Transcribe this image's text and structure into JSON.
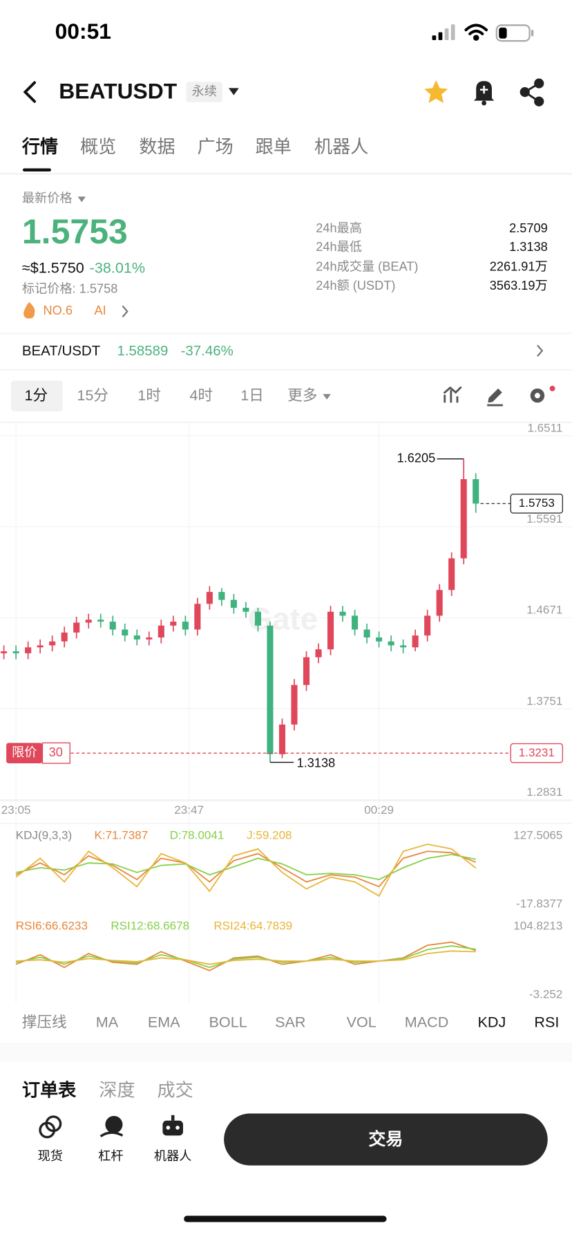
{
  "status_bar": {
    "time": "00:51"
  },
  "header": {
    "symbol": "BEATUSDT",
    "contract_type": "永续"
  },
  "tabs": [
    "行情",
    "概览",
    "数据",
    "广场",
    "跟单",
    "机器人"
  ],
  "price_panel": {
    "label": "最新价格",
    "last_price": "1.5753",
    "usd_price": "≈$1.5750",
    "change": "-38.01%",
    "mark_price": "标记价格: 1.5758",
    "rank": "NO.6",
    "tag": "AI",
    "stats": [
      {
        "label": "24h最高",
        "value": "2.5709"
      },
      {
        "label": "24h最低",
        "value": "1.3138"
      },
      {
        "label": "24h成交量 (BEAT)",
        "value": "2261.91万"
      },
      {
        "label": "24h额 (USDT)",
        "value": "3563.19万"
      }
    ]
  },
  "spot_row": {
    "pair": "BEAT/USDT",
    "price": "1.58589",
    "change": "-37.46%"
  },
  "intervals": [
    "1分",
    "15分",
    "1时",
    "4时",
    "1日",
    "更多"
  ],
  "chart_data": [
    {
      "type": "candlestick",
      "watermark": "Gate",
      "grid": true,
      "x": [
        0,
        1,
        2,
        3,
        4,
        5,
        6,
        7,
        8,
        9,
        10,
        11,
        12,
        13,
        14,
        15,
        16,
        17,
        18,
        19,
        20,
        21,
        22,
        23,
        24,
        25,
        26,
        27,
        28,
        29,
        30,
        31,
        32,
        33,
        34,
        35,
        36,
        37,
        38,
        39
      ],
      "xlim": [
        -0.32,
        46.95
      ],
      "xticks": [
        {
          "value": 1,
          "label": "23:05"
        },
        {
          "value": 15.3,
          "label": "23:47"
        },
        {
          "value": 31,
          "label": "00:29"
        }
      ],
      "ylim": [
        1.2831,
        1.6511
      ],
      "yticks": [
        1.2831,
        1.3751,
        1.4671,
        1.5591,
        1.6511
      ],
      "open": [
        1.424,
        1.426,
        1.424,
        1.43,
        1.432,
        1.436,
        1.445,
        1.455,
        1.458,
        1.456,
        1.448,
        1.442,
        1.438,
        1.44,
        1.452,
        1.456,
        1.448,
        1.474,
        1.486,
        1.478,
        1.47,
        1.466,
        1.452,
        1.322,
        1.352,
        1.392,
        1.42,
        1.428,
        1.466,
        1.462,
        1.448,
        1.44,
        1.436,
        1.432,
        1.43,
        1.442,
        1.462,
        1.488,
        1.52,
        1.6
      ],
      "high": [
        1.432,
        1.432,
        1.436,
        1.438,
        1.442,
        1.451,
        1.461,
        1.464,
        1.464,
        1.462,
        1.454,
        1.448,
        1.446,
        1.458,
        1.462,
        1.462,
        1.48,
        1.492,
        1.49,
        1.484,
        1.476,
        1.47,
        1.456,
        1.358,
        1.398,
        1.426,
        1.434,
        1.472,
        1.472,
        1.468,
        1.454,
        1.446,
        1.442,
        1.438,
        1.448,
        1.468,
        1.494,
        1.526,
        1.6205,
        1.606
      ],
      "low": [
        1.418,
        1.418,
        1.418,
        1.424,
        1.426,
        1.43,
        1.439,
        1.449,
        1.45,
        1.442,
        1.436,
        1.432,
        1.432,
        1.434,
        1.446,
        1.442,
        1.442,
        1.468,
        1.472,
        1.464,
        1.46,
        1.446,
        1.3138,
        1.318,
        1.346,
        1.386,
        1.414,
        1.422,
        1.456,
        1.442,
        1.434,
        1.43,
        1.426,
        1.424,
        1.426,
        1.436,
        1.456,
        1.482,
        1.514,
        1.566
      ],
      "close": [
        1.426,
        1.424,
        1.43,
        1.432,
        1.436,
        1.445,
        1.455,
        1.458,
        1.456,
        1.448,
        1.442,
        1.438,
        1.44,
        1.452,
        1.456,
        1.448,
        1.474,
        1.486,
        1.478,
        1.47,
        1.466,
        1.452,
        1.322,
        1.352,
        1.392,
        1.42,
        1.428,
        1.466,
        1.462,
        1.448,
        1.44,
        1.436,
        1.432,
        1.43,
        1.442,
        1.462,
        1.488,
        1.52,
        1.6,
        1.5753
      ],
      "up_color": "#e0475a",
      "down_color": "#3fb27f",
      "high_label": 1.6205,
      "low_label": 1.3138,
      "last_price": 1.5753,
      "limit_label": "限价",
      "limit_qty": 30,
      "limit_price": 1.3231
    },
    {
      "type": "line",
      "title": "KDJ(9,3,3)",
      "grid": false,
      "x": [
        1,
        3,
        5,
        7,
        9,
        11,
        13,
        15,
        17,
        19,
        21,
        23,
        25,
        27,
        29,
        31,
        33,
        35,
        37,
        39
      ],
      "xlim": [
        -0.32,
        46.95
      ],
      "ylim": [
        -17.8377,
        127.5065
      ],
      "yticks": [
        -17.8377,
        127.5065
      ],
      "series": [
        {
          "name": "K:71.7387",
          "color": "#e8863a",
          "values": [
            45,
            70,
            45,
            85,
            65,
            35,
            80,
            70,
            30,
            75,
            90,
            60,
            30,
            45,
            40,
            20,
            80,
            95,
            92,
            71.7387
          ]
        },
        {
          "name": "D:78.0041",
          "color": "#86d04a",
          "values": [
            50,
            60,
            55,
            70,
            68,
            50,
            65,
            68,
            45,
            62,
            80,
            68,
            45,
            48,
            45,
            35,
            60,
            80,
            88,
            78.0041
          ]
        },
        {
          "name": "J:59.208",
          "color": "#e8b53a",
          "values": [
            40,
            80,
            30,
            95,
            60,
            20,
            90,
            70,
            10,
            85,
            100,
            50,
            15,
            40,
            30,
            0,
            95,
            110,
            100,
            59.208
          ]
        }
      ]
    },
    {
      "type": "line",
      "grid": false,
      "x": [
        1,
        3,
        5,
        7,
        9,
        11,
        13,
        15,
        17,
        19,
        21,
        23,
        25,
        27,
        29,
        31,
        33,
        35,
        37,
        39
      ],
      "xlim": [
        -0.32,
        46.95
      ],
      "ylim": [
        -3.252,
        104.8213
      ],
      "yticks": [
        -3.252,
        104.8213
      ],
      "series": [
        {
          "name": "RSI6:66.6233",
          "color": "#e8863a",
          "values": [
            45,
            60,
            40,
            62,
            48,
            45,
            65,
            50,
            35,
            55,
            58,
            45,
            50,
            60,
            45,
            50,
            55,
            75,
            80,
            66.6233
          ]
        },
        {
          "name": "RSI12:68.6678",
          "color": "#86d04a",
          "values": [
            48,
            56,
            45,
            58,
            50,
            47,
            60,
            52,
            40,
            53,
            56,
            48,
            50,
            56,
            48,
            50,
            54,
            68,
            74,
            68.6678
          ]
        },
        {
          "name": "RSI24:64.7839",
          "color": "#e8b53a",
          "values": [
            50,
            52,
            48,
            54,
            51,
            49,
            55,
            52,
            45,
            51,
            53,
            50,
            50,
            53,
            50,
            50,
            52,
            62,
            66,
            64.7839
          ]
        }
      ]
    }
  ],
  "indicator_tabs": [
    "撑压线",
    "MA",
    "EMA",
    "BOLL",
    "SAR",
    "VOL",
    "MACD",
    "KDJ",
    "RSI"
  ],
  "order_tabs": [
    "订单表",
    "深度",
    "成交"
  ],
  "bottom_nav": [
    "现货",
    "杠杆",
    "机器人"
  ],
  "trade_button": "交易"
}
